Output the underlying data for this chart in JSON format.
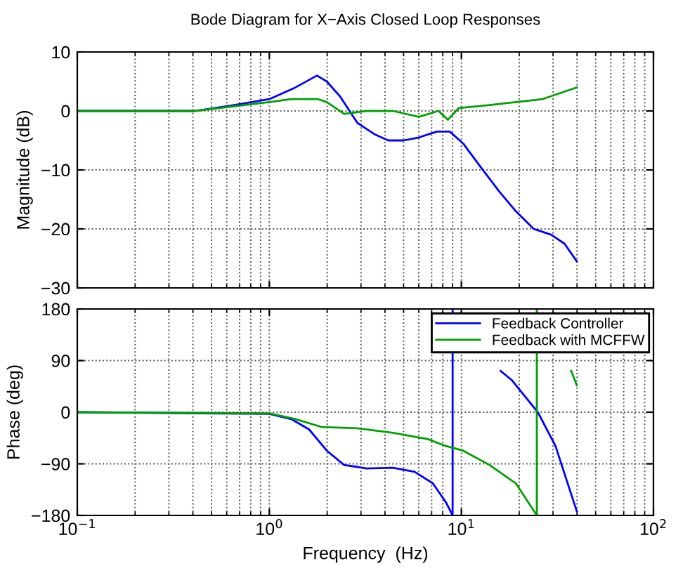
{
  "chart_data": [
    {
      "type": "line",
      "title": "Bode Diagram for X−Axis Closed Loop Responses",
      "ylabel": "Magnitude (dB)",
      "log": "x",
      "grid": true,
      "tick_labels": "y",
      "line_style": "solid",
      "marker": "none",
      "xlim": [
        0.1,
        100
      ],
      "xticks": [
        0.1,
        1,
        10,
        100
      ],
      "ylim": [
        -30,
        10
      ],
      "yticks": [
        -30,
        -20,
        -10,
        0,
        10
      ],
      "series": [
        {
          "color": "#0000ff",
          "x": [
            0.1,
            0.41,
            0.656,
            1.0,
            1.37,
            1.77,
            1.99,
            2.33,
            2.87,
            3.55,
            4.16,
            5.0,
            6.0,
            7.45,
            8.7,
            10.2,
            12.6,
            15.6,
            19.2,
            23.8,
            29.4,
            34.4,
            39.9
          ],
          "values": [
            0,
            0,
            1,
            2,
            4,
            6,
            5,
            2.5,
            -2,
            -4,
            -5,
            -5,
            -4.5,
            -3.5,
            -3.5,
            -5.5,
            -9.5,
            -13.5,
            -17,
            -20,
            -21,
            -22.5,
            -25.5
          ]
        },
        {
          "color": "#00a000",
          "x": [
            0.1,
            0.41,
            1.0,
            1.3,
            1.79,
            1.99,
            2.45,
            3.2,
            4.4,
            6.0,
            7.6,
            8.5,
            9.7,
            14.0,
            19.2,
            26.4,
            32.5,
            39.9
          ],
          "values": [
            0,
            0,
            1.5,
            2,
            2,
            1.5,
            -0.5,
            0,
            0,
            -1,
            0,
            -1.5,
            0.5,
            1,
            1.5,
            2,
            3,
            4
          ]
        }
      ]
    },
    {
      "type": "line",
      "ylabel": "Phase (deg)",
      "xlabel": "Frequency  (Hz)",
      "log": "x",
      "grid": true,
      "legend": "top right",
      "line_style": "solid",
      "marker": "none",
      "xlim": [
        0.1,
        100
      ],
      "xticks": [
        {
          "value": 0.1,
          "label": "10$^{−1}$"
        },
        {
          "value": 1,
          "label": "10$^{0}$"
        },
        {
          "value": 10,
          "label": "10$^{1}$"
        },
        {
          "value": 100,
          "label": "10$^{2}$"
        }
      ],
      "ylim": [
        -180,
        180
      ],
      "yticks": [
        -180,
        -90,
        0,
        90,
        180
      ],
      "series": [
        {
          "name": "Feedback Controller",
          "color": "#0000ff",
          "x": [
            0.1,
            1.0,
            1.3,
            1.61,
            1.99,
            2.45,
            3.2,
            4.4,
            5.7,
            7.1,
            8.3,
            9.0,
            9.0,
            11.4,
            16.0,
            18.3,
            25.0,
            30.9,
            39.9
          ],
          "values": [
            0,
            -3,
            -12,
            -30,
            -67,
            -92,
            -98,
            -97,
            -104,
            -124,
            -157,
            -180,
            180,
            null,
            72,
            56,
            0,
            -59,
            -173
          ]
        },
        {
          "name": "Feedback with MCFFW",
          "color": "#00a000",
          "x": [
            0.1,
            1.0,
            1.37,
            1.88,
            2.87,
            4.4,
            6.7,
            8.3,
            10.2,
            14.0,
            19.2,
            24.7,
            24.7,
            32.5,
            37.3,
            39.9
          ],
          "values": [
            0,
            -2,
            -12,
            -26,
            -28,
            -36,
            -47,
            -59,
            -67,
            -92,
            -124,
            -180,
            178,
            null,
            72,
            47
          ]
        }
      ]
    }
  ]
}
